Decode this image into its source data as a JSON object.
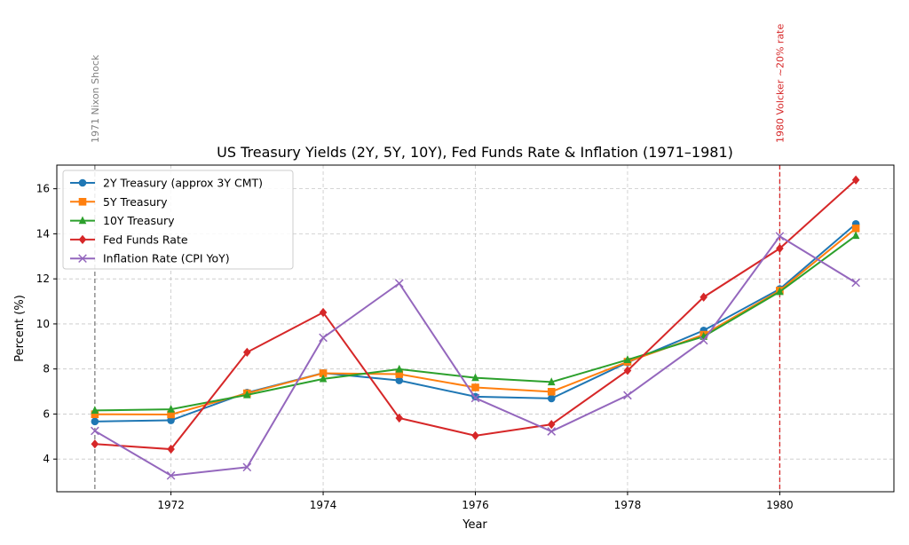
{
  "chart_data": {
    "type": "line",
    "title": "US Treasury Yields (2Y, 5Y, 10Y), Fed Funds Rate & Inflation (1971–1981)",
    "xlabel": "Year",
    "ylabel": "Percent (%)",
    "xlim": [
      1970.5,
      1981.5
    ],
    "ylim": [
      2.55,
      17.05
    ],
    "xticks": [
      1972,
      1974,
      1976,
      1978,
      1980
    ],
    "xtick_labels": [
      "1972",
      "1974",
      "1976",
      "1978",
      "1980"
    ],
    "yticks": [
      4,
      6,
      8,
      10,
      12,
      14,
      16
    ],
    "ytick_labels": [
      "4",
      "6",
      "8",
      "10",
      "12",
      "14",
      "16"
    ],
    "grid": true,
    "legend_position": "top-left",
    "x": [
      1971,
      1972,
      1973,
      1974,
      1975,
      1976,
      1977,
      1978,
      1979,
      1980,
      1981
    ],
    "series": [
      {
        "name": "2Y Treasury (approx 3Y CMT)",
        "color": "#1f77b4",
        "marker": "circle",
        "values": [
          5.67,
          5.72,
          6.95,
          7.82,
          7.49,
          6.77,
          6.69,
          8.29,
          9.71,
          11.55,
          14.44
        ]
      },
      {
        "name": "5Y Treasury",
        "color": "#ff7f0e",
        "marker": "square",
        "values": [
          5.99,
          5.98,
          6.92,
          7.81,
          7.77,
          7.18,
          6.99,
          8.32,
          9.52,
          11.48,
          14.24
        ]
      },
      {
        "name": "10Y Treasury",
        "color": "#2ca02c",
        "marker": "triangle",
        "values": [
          6.16,
          6.21,
          6.85,
          7.56,
          7.99,
          7.61,
          7.42,
          8.41,
          9.44,
          11.43,
          13.92
        ]
      },
      {
        "name": "Fed Funds Rate",
        "color": "#d62728",
        "marker": "diamond",
        "values": [
          4.67,
          4.44,
          8.74,
          10.51,
          5.82,
          5.04,
          5.54,
          7.93,
          11.19,
          13.35,
          16.39
        ]
      },
      {
        "name": "Inflation Rate (CPI YoY)",
        "color": "#9467bd",
        "marker": "x",
        "values": [
          5.25,
          3.27,
          3.64,
          9.39,
          11.8,
          6.71,
          5.23,
          6.83,
          9.27,
          13.89,
          11.83
        ]
      }
    ],
    "annotations": [
      {
        "x": 1971,
        "label": "1971 Nixon Shock",
        "color": "#808080",
        "style": "dashed"
      },
      {
        "x": 1980,
        "label": "1980 Volcker ~20% rate",
        "color": "#d62728",
        "style": "dashed"
      }
    ]
  }
}
